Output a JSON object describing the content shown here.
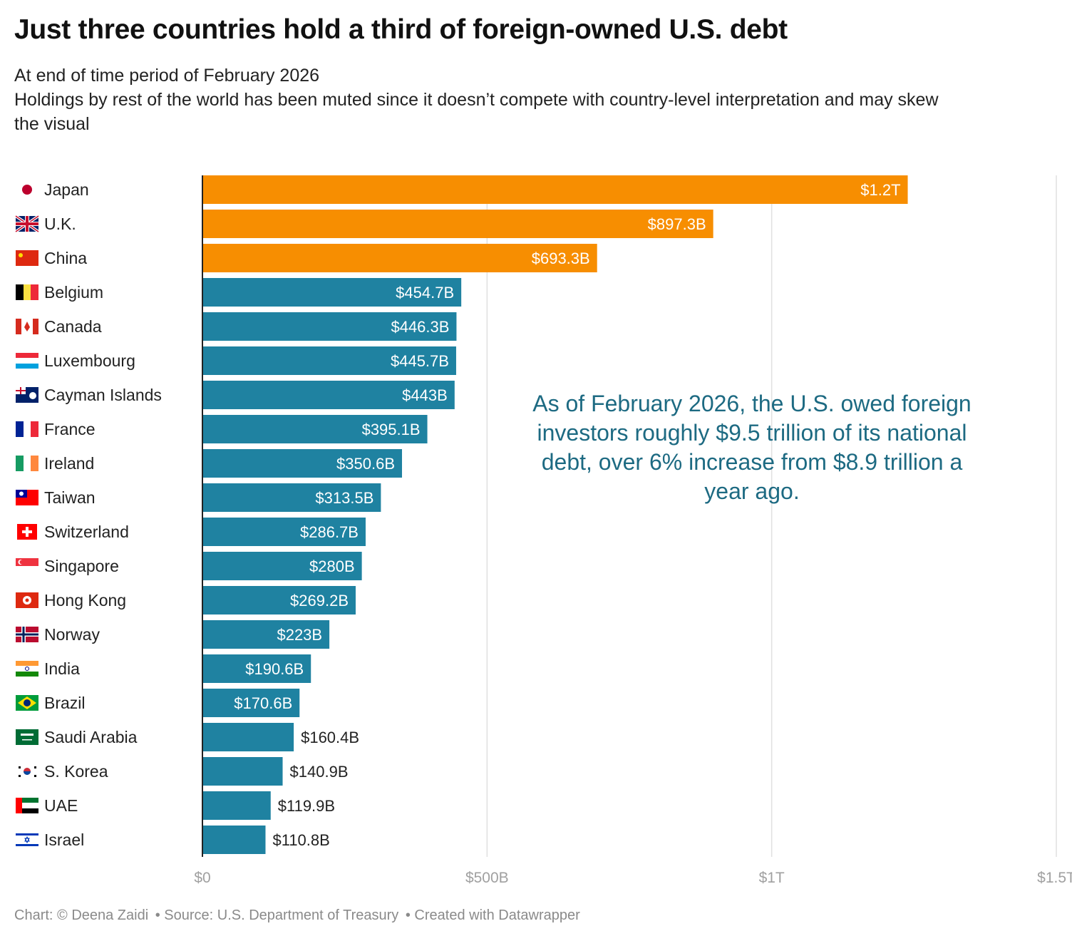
{
  "title": "Just three countries hold a third of foreign-owned U.S. debt",
  "subtitle_lines": [
    "At end of time period of February 2026",
    "Holdings by rest of the world has been muted since it doesn’t compete with country-level interpretation and may skew",
    "the visual"
  ],
  "annotation": "As of February 2026, the U.S. owed foreign investors roughly $9.5 trillion of its national debt, over 6% increase from $8.9 trillion a year ago.",
  "footer": {
    "credit": "Chart: © Deena Zaidi",
    "source": "• Source: U.S. Department of Treasury",
    "tool": "• Created with Datawrapper"
  },
  "colors": {
    "highlight": "#f78e01",
    "default": "#1f82a1",
    "annotation": "#1d6a82",
    "grid": "#e0e0e0",
    "axis_label": "#a0a0a0"
  },
  "chart_data": {
    "type": "bar",
    "orientation": "horizontal",
    "unit": "USD billions",
    "xlim": [
      0,
      1500
    ],
    "ticks": [
      {
        "value": 0,
        "label": "$0"
      },
      {
        "value": 500,
        "label": "$500B"
      },
      {
        "value": 1000,
        "label": "$1T"
      },
      {
        "value": 1500,
        "label": "$1.5T"
      }
    ],
    "grid": true,
    "highlighted_count": 3,
    "categories": [
      "Japan",
      "U.K.",
      "China",
      "Belgium",
      "Canada",
      "Luxembourg",
      "Cayman Islands",
      "France",
      "Ireland",
      "Taiwan",
      "Switzerland",
      "Singapore",
      "Hong Kong",
      "Norway",
      "India",
      "Brazil",
      "Saudi Arabia",
      "S. Korea",
      "UAE",
      "Israel"
    ],
    "flags": [
      "japan-flag-icon",
      "uk-flag-icon",
      "china-flag-icon",
      "belgium-flag-icon",
      "canada-flag-icon",
      "luxembourg-flag-icon",
      "cayman-islands-flag-icon",
      "france-flag-icon",
      "ireland-flag-icon",
      "taiwan-flag-icon",
      "switzerland-flag-icon",
      "singapore-flag-icon",
      "hong-kong-flag-icon",
      "norway-flag-icon",
      "india-flag-icon",
      "brazil-flag-icon",
      "saudi-arabia-flag-icon",
      "s-korea-flag-icon",
      "uae-flag-icon",
      "israel-flag-icon"
    ],
    "values": [
      1239.0,
      897.3,
      693.3,
      454.7,
      446.3,
      445.7,
      443.0,
      395.1,
      350.6,
      313.5,
      286.7,
      280.0,
      269.2,
      223.0,
      190.6,
      170.6,
      160.4,
      140.9,
      119.9,
      110.8
    ],
    "value_labels": [
      "$1.2T",
      "$897.3B",
      "$693.3B",
      "$454.7B",
      "$446.3B",
      "$445.7B",
      "$443B",
      "$395.1B",
      "$350.6B",
      "$313.5B",
      "$286.7B",
      "$280B",
      "$269.2B",
      "$223B",
      "$190.6B",
      "$170.6B",
      "$160.4B",
      "$140.9B",
      "$119.9B",
      "$110.8B"
    ]
  }
}
